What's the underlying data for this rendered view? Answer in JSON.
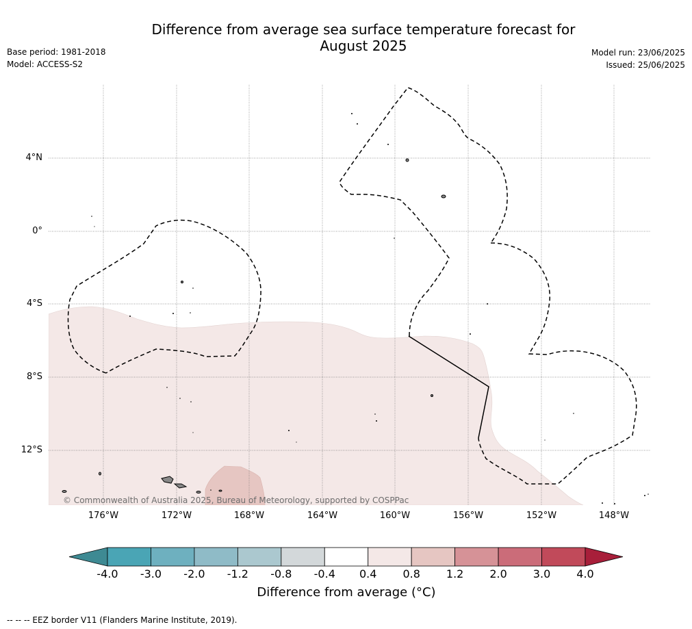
{
  "header": {
    "title_line1": "Difference from average sea surface temperature forecast for",
    "title_line2": "August 2025",
    "base_period": "Base period: 1981-2018",
    "model": "Model: ACCESS-S2",
    "model_run": "Model run: 23/06/2025",
    "issued": "Issued: 25/06/2025"
  },
  "map": {
    "lat_labels": [
      "4°N",
      "0°",
      "4°S",
      "8°S",
      "12°S"
    ],
    "lon_labels": [
      "176°W",
      "172°W",
      "168°W",
      "164°W",
      "160°W",
      "156°W",
      "152°W",
      "148°W"
    ],
    "copyright": "© Commonwealth of Australia 2025, Bureau of Meteorology, supported by COSPPac",
    "anomaly_fill_colors": {
      "light": "#f4e8e7",
      "medium": "#e6c6c2"
    }
  },
  "colorbar": {
    "ticks": [
      "-4.0",
      "-3.0",
      "-2.0",
      "-1.2",
      "-0.8",
      "-0.4",
      "0.4",
      "0.8",
      "1.2",
      "2.0",
      "3.0",
      "4.0"
    ],
    "colors": [
      "#3e8a93",
      "#4aa5b5",
      "#6eb0bf",
      "#8fbbc7",
      "#abc8cf",
      "#d3d8da",
      "#ffffff",
      "#f4e8e7",
      "#e6c6c2",
      "#d69297",
      "#cb6c79",
      "#c14a5a",
      "#a81f3a"
    ],
    "label": "Difference from average (°C)"
  },
  "footer": {
    "legend": "-- -- -- EEZ border V11 (Flanders Marine Institute, 2019)."
  }
}
